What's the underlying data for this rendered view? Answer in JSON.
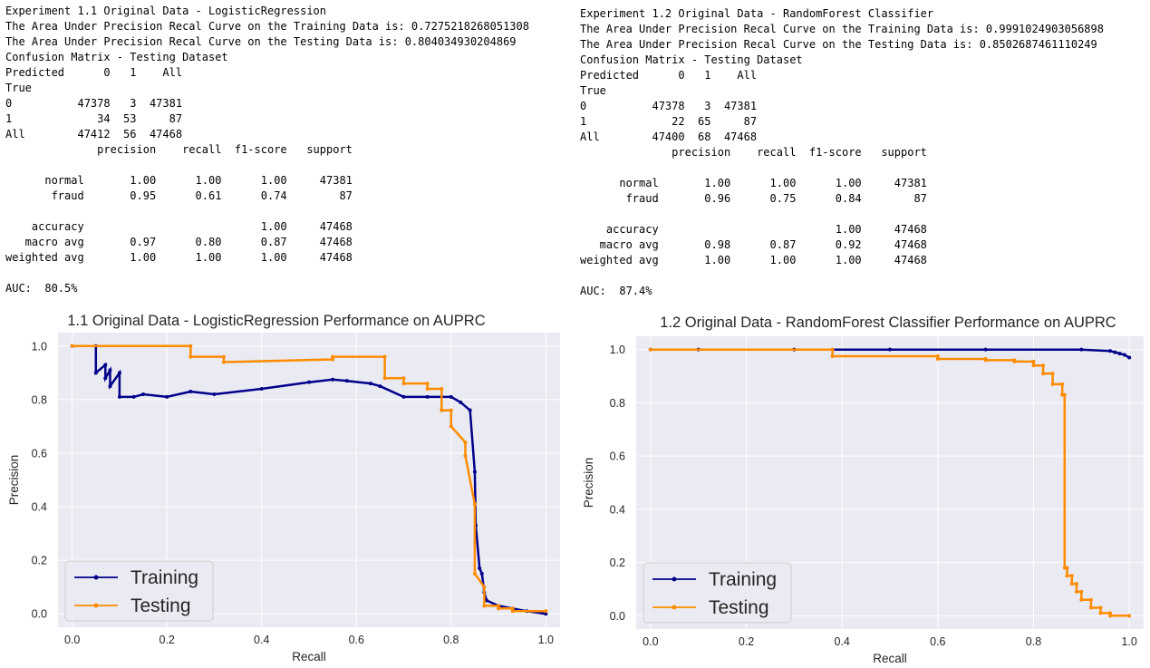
{
  "experiments": [
    {
      "report_lines": [
        "Experiment 1.1 Original Data - LogisticRegression",
        "The Area Under Precision Recal Curve on the Training Data is: 0.7275218268051308",
        "The Area Under Precision Recal Curve on the Testing Data is: 0.804034930204869",
        "Confusion Matrix - Testing Dataset",
        "Predicted      0   1    All",
        "True",
        "0          47378   3  47381",
        "1             34  53     87",
        "All        47412  56  47468",
        "              precision    recall  f1-score   support",
        "",
        "      normal       1.00      1.00      1.00     47381",
        "       fraud       0.95      0.61      0.74        87",
        "",
        "    accuracy                           1.00     47468",
        "   macro avg       0.97      0.80      0.87     47468",
        "weighted avg       1.00      1.00      1.00     47468",
        "",
        "AUC:  80.5%"
      ]
    },
    {
      "report_lines": [
        "Experiment 1.2 Original Data - RandomForest Classifier",
        "The Area Under Precision Recal Curve on the Training Data is: 0.9991024903056898",
        "The Area Under Precision Recal Curve on the Testing Data is: 0.8502687461110249",
        "Confusion Matrix - Testing Dataset",
        "Predicted      0   1    All",
        "True",
        "0          47378   3  47381",
        "1             22  65     87",
        "All        47400  68  47468",
        "              precision    recall  f1-score   support",
        "",
        "      normal       1.00      1.00      1.00     47381",
        "       fraud       0.96      0.75      0.84        87",
        "",
        "    accuracy                           1.00     47468",
        "   macro avg       0.98      0.87      0.92     47468",
        "weighted avg       1.00      1.00      1.00     47468",
        "",
        "AUC:  87.4%"
      ]
    }
  ],
  "colors": {
    "training": "#00008b",
    "testing": "#ff8c00",
    "plot_bg": "#eaeaf2",
    "grid": "#ffffff"
  },
  "chart_data": [
    {
      "type": "line",
      "title": "1.1 Original Data - LogisticRegression Performance on AUPRC",
      "xlabel": "Recall",
      "ylabel": "Precision",
      "xlim": [
        -0.03,
        1.03
      ],
      "ylim": [
        -0.05,
        1.05
      ],
      "xticks": [
        "0.0",
        "0.2",
        "0.4",
        "0.6",
        "0.8",
        "1.0"
      ],
      "yticks": [
        "0.0",
        "0.2",
        "0.4",
        "0.6",
        "0.8",
        "1.0"
      ],
      "grid": true,
      "legend_position": "lower-left",
      "series": [
        {
          "name": "Training",
          "color": "#00008b",
          "x": [
            0.0,
            0.05,
            0.05,
            0.07,
            0.07,
            0.08,
            0.08,
            0.1,
            0.1,
            0.13,
            0.15,
            0.2,
            0.25,
            0.3,
            0.4,
            0.5,
            0.55,
            0.58,
            0.63,
            0.65,
            0.7,
            0.75,
            0.8,
            0.82,
            0.84,
            0.85,
            0.852,
            0.86,
            0.865,
            0.87,
            0.875,
            0.9,
            0.93,
            0.96,
            1.0
          ],
          "y": [
            1.0,
            1.0,
            0.9,
            0.93,
            0.88,
            0.91,
            0.85,
            0.9,
            0.81,
            0.81,
            0.82,
            0.81,
            0.83,
            0.82,
            0.84,
            0.865,
            0.875,
            0.87,
            0.86,
            0.85,
            0.81,
            0.81,
            0.81,
            0.79,
            0.76,
            0.53,
            0.33,
            0.17,
            0.15,
            0.08,
            0.05,
            0.03,
            0.02,
            0.01,
            0.0
          ]
        },
        {
          "name": "Testing",
          "color": "#ff8c00",
          "x": [
            0.0,
            0.25,
            0.25,
            0.32,
            0.32,
            0.55,
            0.55,
            0.66,
            0.66,
            0.7,
            0.7,
            0.75,
            0.75,
            0.78,
            0.78,
            0.8,
            0.8,
            0.83,
            0.83,
            0.85,
            0.85,
            0.87,
            0.87,
            0.9,
            0.9,
            0.93,
            0.93,
            1.0
          ],
          "y": [
            1.0,
            1.0,
            0.96,
            0.96,
            0.94,
            0.95,
            0.96,
            0.96,
            0.88,
            0.88,
            0.86,
            0.86,
            0.84,
            0.84,
            0.76,
            0.76,
            0.7,
            0.64,
            0.59,
            0.41,
            0.15,
            0.1,
            0.03,
            0.03,
            0.02,
            0.02,
            0.01,
            0.01
          ]
        }
      ]
    },
    {
      "type": "line",
      "title": "1.2 Original Data - RandomForest Classifier  Performance on AUPRC",
      "xlabel": "Recall",
      "ylabel": "Precision",
      "xlim": [
        -0.03,
        1.03
      ],
      "ylim": [
        -0.05,
        1.05
      ],
      "xticks": [
        "0.0",
        "0.2",
        "0.4",
        "0.6",
        "0.8",
        "1.0"
      ],
      "yticks": [
        "0.0",
        "0.2",
        "0.4",
        "0.6",
        "0.8",
        "1.0"
      ],
      "grid": true,
      "legend_position": "lower-left",
      "series": [
        {
          "name": "Training",
          "color": "#00008b",
          "x": [
            0.0,
            0.1,
            0.3,
            0.5,
            0.7,
            0.9,
            0.96,
            0.97,
            0.98,
            0.99,
            1.0
          ],
          "y": [
            1.0,
            1.0,
            1.0,
            1.0,
            1.0,
            1.0,
            0.995,
            0.99,
            0.985,
            0.98,
            0.97
          ]
        },
        {
          "name": "Testing",
          "color": "#ff8c00",
          "x": [
            0.0,
            0.38,
            0.38,
            0.6,
            0.6,
            0.7,
            0.7,
            0.76,
            0.76,
            0.8,
            0.8,
            0.82,
            0.82,
            0.84,
            0.84,
            0.86,
            0.86,
            0.865,
            0.865,
            0.87,
            0.87,
            0.88,
            0.88,
            0.89,
            0.89,
            0.9,
            0.9,
            0.92,
            0.92,
            0.94,
            0.94,
            0.96,
            0.96,
            1.0
          ],
          "y": [
            1.0,
            1.0,
            0.975,
            0.975,
            0.965,
            0.965,
            0.96,
            0.96,
            0.955,
            0.955,
            0.94,
            0.94,
            0.91,
            0.91,
            0.87,
            0.87,
            0.83,
            0.83,
            0.18,
            0.18,
            0.15,
            0.15,
            0.12,
            0.12,
            0.09,
            0.09,
            0.06,
            0.06,
            0.03,
            0.03,
            0.01,
            0.01,
            0.0,
            0.0
          ]
        }
      ]
    }
  ]
}
